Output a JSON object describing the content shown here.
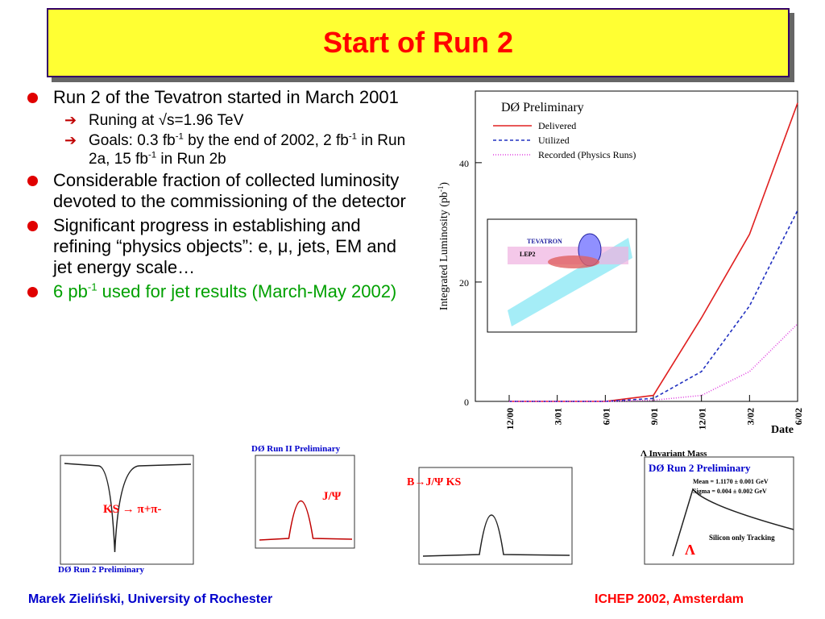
{
  "title": "Start of Run 2",
  "bullets": [
    {
      "parts": [
        "Run 2 of the Tevatron started in March 2001"
      ],
      "sub": [
        {
          "parts": [
            "Runing at √s=1.96 TeV"
          ]
        },
        {
          "parts": [
            "Goals: 0.3 fb",
            "-1",
            " by the end of 2002, 2 fb",
            "-1",
            " in Run 2a, 15 fb",
            "-1",
            " in Run 2b"
          ]
        }
      ]
    },
    {
      "parts": [
        "Considerable fraction of collected luminosity devoted to the commissioning of the detector"
      ]
    },
    {
      "parts": [
        "Significant progress in establishing and refining “physics objects”: e, μ, jets, EM and jet energy scale…"
      ]
    },
    {
      "parts": [
        "6 pb",
        "-1",
        " used for jet results (March-May 2002)"
      ]
    }
  ],
  "chart_data": {
    "type": "line",
    "title": "DØ Preliminary",
    "ylabel": "Integrated Luminosity (pb",
    "ylabel_sup": "-1",
    "ylabel_end": ")",
    "xlabel": "Date",
    "x": [
      "12/00",
      "3/01",
      "6/01",
      "9/01",
      "12/01",
      "3/02",
      "6/02"
    ],
    "ylim": [
      0,
      52
    ],
    "yticks": [
      0,
      20,
      40
    ],
    "series": [
      {
        "name": "Delivered",
        "color": "#e02020",
        "dash": "",
        "values": [
          0,
          0,
          0,
          1,
          14,
          28,
          50
        ]
      },
      {
        "name": "Utilized",
        "color": "#2030c0",
        "dash": "4,3",
        "values": [
          0,
          0,
          0,
          0.5,
          5,
          16,
          32
        ]
      },
      {
        "name": "Recorded (Physics Runs)",
        "color": "#e040e0",
        "dash": "1,2",
        "values": [
          0,
          0,
          0,
          0.2,
          1,
          5,
          13
        ]
      }
    ]
  },
  "inset": {
    "labels": [
      "TEVATRON",
      "LEP2"
    ]
  },
  "plots": [
    {
      "labels": [
        "DØ Run 2 Preliminary",
        "KS → π+π-"
      ]
    },
    {
      "labels": [
        "DØ Run II Preliminary",
        "J/Ψ"
      ]
    },
    {
      "labels": [
        "B→J/Ψ KS"
      ]
    },
    {
      "labels": [
        "Λ Invariant Mass",
        "DØ Run 2 Preliminary",
        "Mean = 1.1170 ± 0.001 GeV",
        "Sigma = 0.004 ± 0.002 GeV",
        "Silicon only Tracking",
        "Λ"
      ]
    }
  ],
  "footer": {
    "left": "Marek Zieliński, University of Rochester",
    "right": "ICHEP 2002, Amsterdam"
  }
}
